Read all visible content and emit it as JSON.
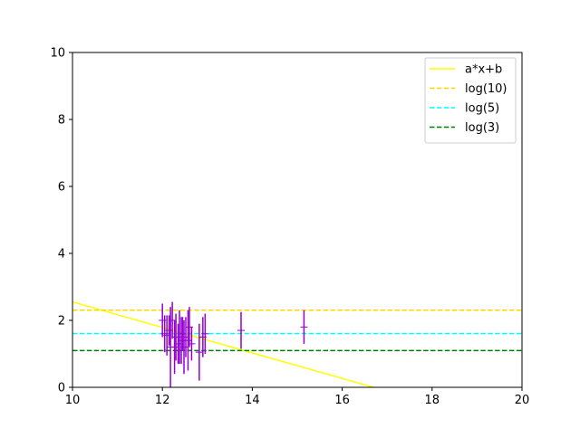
{
  "chart_data": {
    "type": "scatter",
    "xlim": [
      10,
      20
    ],
    "ylim": [
      0,
      10
    ],
    "x_ticks": [
      10,
      12,
      14,
      16,
      18,
      20
    ],
    "y_ticks": [
      0,
      2,
      4,
      6,
      8,
      10
    ],
    "grid": false,
    "legend_position": "top-right",
    "series": [
      {
        "name": "a*x+b",
        "kind": "line",
        "style": "solid",
        "color": "#ffff00",
        "x": [
          10,
          16.7
        ],
        "y": [
          2.55,
          0.0
        ]
      },
      {
        "name": "log(10)",
        "kind": "hline",
        "style": "dashed",
        "color": "#ffd700",
        "y": 2.303
      },
      {
        "name": "log(5)",
        "kind": "hline",
        "style": "dashed",
        "color": "#00ffff",
        "y": 1.609
      },
      {
        "name": "log(3)",
        "kind": "hline",
        "style": "dashed",
        "color": "#008000",
        "y": 1.099
      },
      {
        "kind": "errorbar",
        "color": "#9400d3",
        "points": [
          {
            "x": 12.0,
            "y": 2.0,
            "err": 0.5
          },
          {
            "x": 12.05,
            "y": 1.6,
            "err": 0.55
          },
          {
            "x": 12.1,
            "y": 1.55,
            "err": 0.6
          },
          {
            "x": 12.15,
            "y": 1.7,
            "err": 0.45
          },
          {
            "x": 12.18,
            "y": 1.2,
            "err": 1.2
          },
          {
            "x": 12.22,
            "y": 2.0,
            "err": 0.55
          },
          {
            "x": 12.27,
            "y": 1.2,
            "err": 0.8
          },
          {
            "x": 12.3,
            "y": 1.5,
            "err": 0.7
          },
          {
            "x": 12.35,
            "y": 1.3,
            "err": 0.6
          },
          {
            "x": 12.38,
            "y": 1.5,
            "err": 0.8
          },
          {
            "x": 12.42,
            "y": 1.4,
            "err": 0.7
          },
          {
            "x": 12.45,
            "y": 1.6,
            "err": 0.5
          },
          {
            "x": 12.48,
            "y": 1.2,
            "err": 0.8
          },
          {
            "x": 12.52,
            "y": 1.5,
            "err": 0.6
          },
          {
            "x": 12.57,
            "y": 1.4,
            "err": 0.9
          },
          {
            "x": 12.6,
            "y": 1.8,
            "err": 0.6
          },
          {
            "x": 12.65,
            "y": 1.3,
            "err": 0.5
          },
          {
            "x": 12.82,
            "y": 1.05,
            "err": 0.85
          },
          {
            "x": 12.9,
            "y": 1.5,
            "err": 0.6
          },
          {
            "x": 12.95,
            "y": 1.6,
            "err": 0.6
          },
          {
            "x": 13.75,
            "y": 1.7,
            "err": 0.55
          },
          {
            "x": 15.15,
            "y": 1.8,
            "err": 0.5
          }
        ]
      }
    ]
  }
}
